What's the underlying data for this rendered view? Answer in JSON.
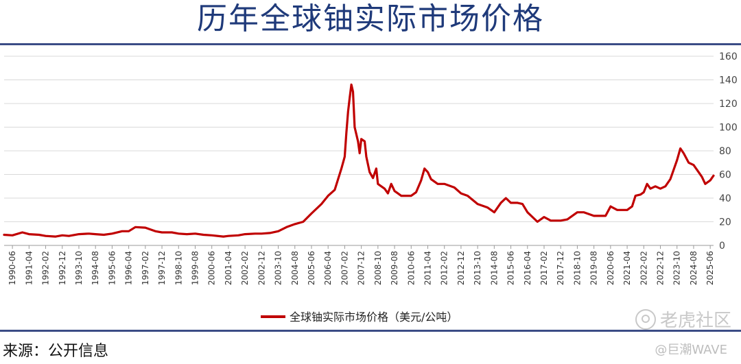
{
  "title": "历年全球铀实际市场价格",
  "source": "来源：公开信息",
  "watermark": "老虎社区",
  "handle": "@巨潮WAVE",
  "chart_data": {
    "type": "line",
    "x_unit": "date",
    "xlim": [
      "1990-01",
      "2025-08"
    ],
    "ylim": [
      0,
      160
    ],
    "yticks": [
      0,
      20,
      40,
      60,
      80,
      100,
      120,
      140,
      160
    ],
    "y_axis_side": "right",
    "grid": true,
    "legend_position": "bottom-center",
    "xticks": [
      "1990-06",
      "1991-04",
      "1992-02",
      "1992-12",
      "1993-10",
      "1994-08",
      "1995-06",
      "1996-04",
      "1997-02",
      "1997-12",
      "1998-10",
      "1999-08",
      "2000-06",
      "2001-04",
      "2002-02",
      "2002-12",
      "2003-10",
      "2004-08",
      "2005-06",
      "2006-04",
      "2007-02",
      "2007-12",
      "2008-10",
      "2009-08",
      "2010-06",
      "2011-04",
      "2012-02",
      "2012-12",
      "2013-10",
      "2014-08",
      "2015-06",
      "2016-04",
      "2017-02",
      "2017-12",
      "2018-10",
      "2019-08",
      "2020-06",
      "2021-04",
      "2022-02",
      "2022-12",
      "2023-10",
      "2024-08",
      "2025-06"
    ],
    "series": [
      {
        "name": "全球铀实际市场价格（美元/公吨）",
        "color": "#c00000",
        "points": [
          [
            "1990-01",
            9
          ],
          [
            "1990-06",
            8.5
          ],
          [
            "1990-12",
            11
          ],
          [
            "1991-04",
            9.5
          ],
          [
            "1991-10",
            9
          ],
          [
            "1992-02",
            8
          ],
          [
            "1992-08",
            7.5
          ],
          [
            "1992-12",
            8.5
          ],
          [
            "1993-04",
            8
          ],
          [
            "1993-10",
            9.5
          ],
          [
            "1994-04",
            10
          ],
          [
            "1994-08",
            9.5
          ],
          [
            "1995-01",
            9
          ],
          [
            "1995-06",
            10
          ],
          [
            "1995-12",
            12
          ],
          [
            "1996-04",
            12
          ],
          [
            "1996-08",
            15.5
          ],
          [
            "1997-02",
            15
          ],
          [
            "1997-08",
            12
          ],
          [
            "1997-12",
            11
          ],
          [
            "1998-06",
            11
          ],
          [
            "1998-10",
            10
          ],
          [
            "1999-03",
            9.5
          ],
          [
            "1999-08",
            10
          ],
          [
            "2000-01",
            9
          ],
          [
            "2000-06",
            8.5
          ],
          [
            "2001-01",
            7.5
          ],
          [
            "2001-04",
            8
          ],
          [
            "2001-10",
            8.5
          ],
          [
            "2002-02",
            9.5
          ],
          [
            "2002-08",
            10
          ],
          [
            "2002-12",
            10
          ],
          [
            "2003-05",
            10.5
          ],
          [
            "2003-10",
            12
          ],
          [
            "2004-03",
            15.5
          ],
          [
            "2004-08",
            18
          ],
          [
            "2005-01",
            20
          ],
          [
            "2005-06",
            27
          ],
          [
            "2005-12",
            35
          ],
          [
            "2006-04",
            42
          ],
          [
            "2006-08",
            47
          ],
          [
            "2006-12",
            65
          ],
          [
            "2007-02",
            75
          ],
          [
            "2007-03",
            95
          ],
          [
            "2007-04",
            113
          ],
          [
            "2007-05",
            125
          ],
          [
            "2007-06",
            136
          ],
          [
            "2007-07",
            130
          ],
          [
            "2007-08",
            100
          ],
          [
            "2007-10",
            88
          ],
          [
            "2007-11",
            78
          ],
          [
            "2007-12",
            90
          ],
          [
            "2008-02",
            88
          ],
          [
            "2008-03",
            75
          ],
          [
            "2008-05",
            62
          ],
          [
            "2008-07",
            57
          ],
          [
            "2008-09",
            65
          ],
          [
            "2008-10",
            52
          ],
          [
            "2008-12",
            50
          ],
          [
            "2009-02",
            48
          ],
          [
            "2009-04",
            44
          ],
          [
            "2009-06",
            52
          ],
          [
            "2009-08",
            46
          ],
          [
            "2009-10",
            44
          ],
          [
            "2009-12",
            42
          ],
          [
            "2010-03",
            42
          ],
          [
            "2010-06",
            42
          ],
          [
            "2010-09",
            45
          ],
          [
            "2010-12",
            55
          ],
          [
            "2011-02",
            65
          ],
          [
            "2011-04",
            62
          ],
          [
            "2011-06",
            56
          ],
          [
            "2011-10",
            52
          ],
          [
            "2012-02",
            52
          ],
          [
            "2012-08",
            49
          ],
          [
            "2012-12",
            44
          ],
          [
            "2013-04",
            42
          ],
          [
            "2013-10",
            35
          ],
          [
            "2014-04",
            32
          ],
          [
            "2014-08",
            28
          ],
          [
            "2014-12",
            36
          ],
          [
            "2015-03",
            40
          ],
          [
            "2015-06",
            36
          ],
          [
            "2015-10",
            36
          ],
          [
            "2016-01",
            35
          ],
          [
            "2016-04",
            28
          ],
          [
            "2016-10",
            20
          ],
          [
            "2017-02",
            24
          ],
          [
            "2017-06",
            21
          ],
          [
            "2017-12",
            21
          ],
          [
            "2018-04",
            22
          ],
          [
            "2018-10",
            28
          ],
          [
            "2019-02",
            28
          ],
          [
            "2019-08",
            25
          ],
          [
            "2019-12",
            25
          ],
          [
            "2020-03",
            25
          ],
          [
            "2020-06",
            33
          ],
          [
            "2020-10",
            30
          ],
          [
            "2021-01",
            30
          ],
          [
            "2021-04",
            30
          ],
          [
            "2021-07",
            33
          ],
          [
            "2021-09",
            42
          ],
          [
            "2021-12",
            43
          ],
          [
            "2022-02",
            45
          ],
          [
            "2022-04",
            52
          ],
          [
            "2022-06",
            48
          ],
          [
            "2022-09",
            50
          ],
          [
            "2022-12",
            48
          ],
          [
            "2023-03",
            50
          ],
          [
            "2023-06",
            56
          ],
          [
            "2023-10",
            72
          ],
          [
            "2023-12",
            82
          ],
          [
            "2024-02",
            78
          ],
          [
            "2024-05",
            70
          ],
          [
            "2024-08",
            68
          ],
          [
            "2024-11",
            62
          ],
          [
            "2025-01",
            58
          ],
          [
            "2025-03",
            52
          ],
          [
            "2025-06",
            55
          ],
          [
            "2025-08",
            59
          ]
        ]
      }
    ]
  }
}
